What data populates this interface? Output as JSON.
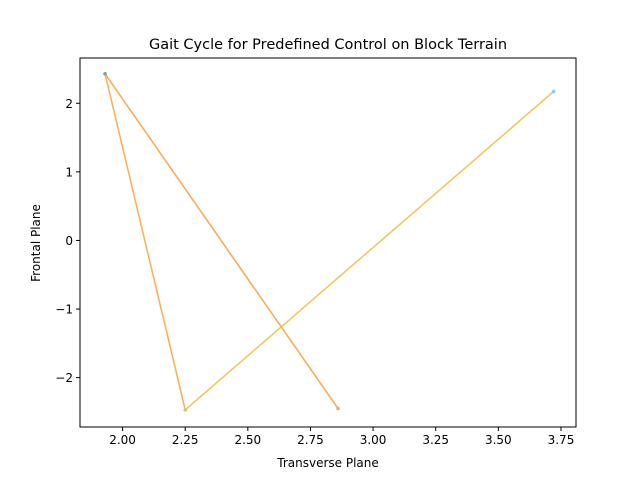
{
  "chart_data": {
    "type": "line",
    "title": "Gait Cycle for Predefined Control on Block Terrain",
    "xlabel": "Transverse Plane",
    "ylabel": "Frontal Plane",
    "xlim": [
      1.83,
      3.81
    ],
    "ylim": [
      -2.72,
      2.66
    ],
    "xticks": [
      2.0,
      2.25,
      2.5,
      2.75,
      3.0,
      3.25,
      3.5,
      3.75
    ],
    "xtick_labels": [
      "2.00",
      "2.25",
      "2.50",
      "2.75",
      "3.00",
      "3.25",
      "3.50",
      "3.75"
    ],
    "yticks": [
      2,
      1,
      0,
      -1,
      -2
    ],
    "ytick_labels": [
      "2",
      "1",
      "0",
      "−1",
      "−2"
    ],
    "grid": false,
    "path": [
      {
        "x": 3.72,
        "y": 2.17
      },
      {
        "x": 2.25,
        "y": -2.47
      },
      {
        "x": 1.93,
        "y": 2.43
      },
      {
        "x": 2.86,
        "y": -2.45
      }
    ],
    "segment_colors": [
      "#f0c862",
      "#f9b25c",
      "#f8ad5a"
    ],
    "point_colors": [
      "#8ec9e6",
      "#c8c890",
      "#7f9eb0",
      "#e0b080"
    ]
  }
}
